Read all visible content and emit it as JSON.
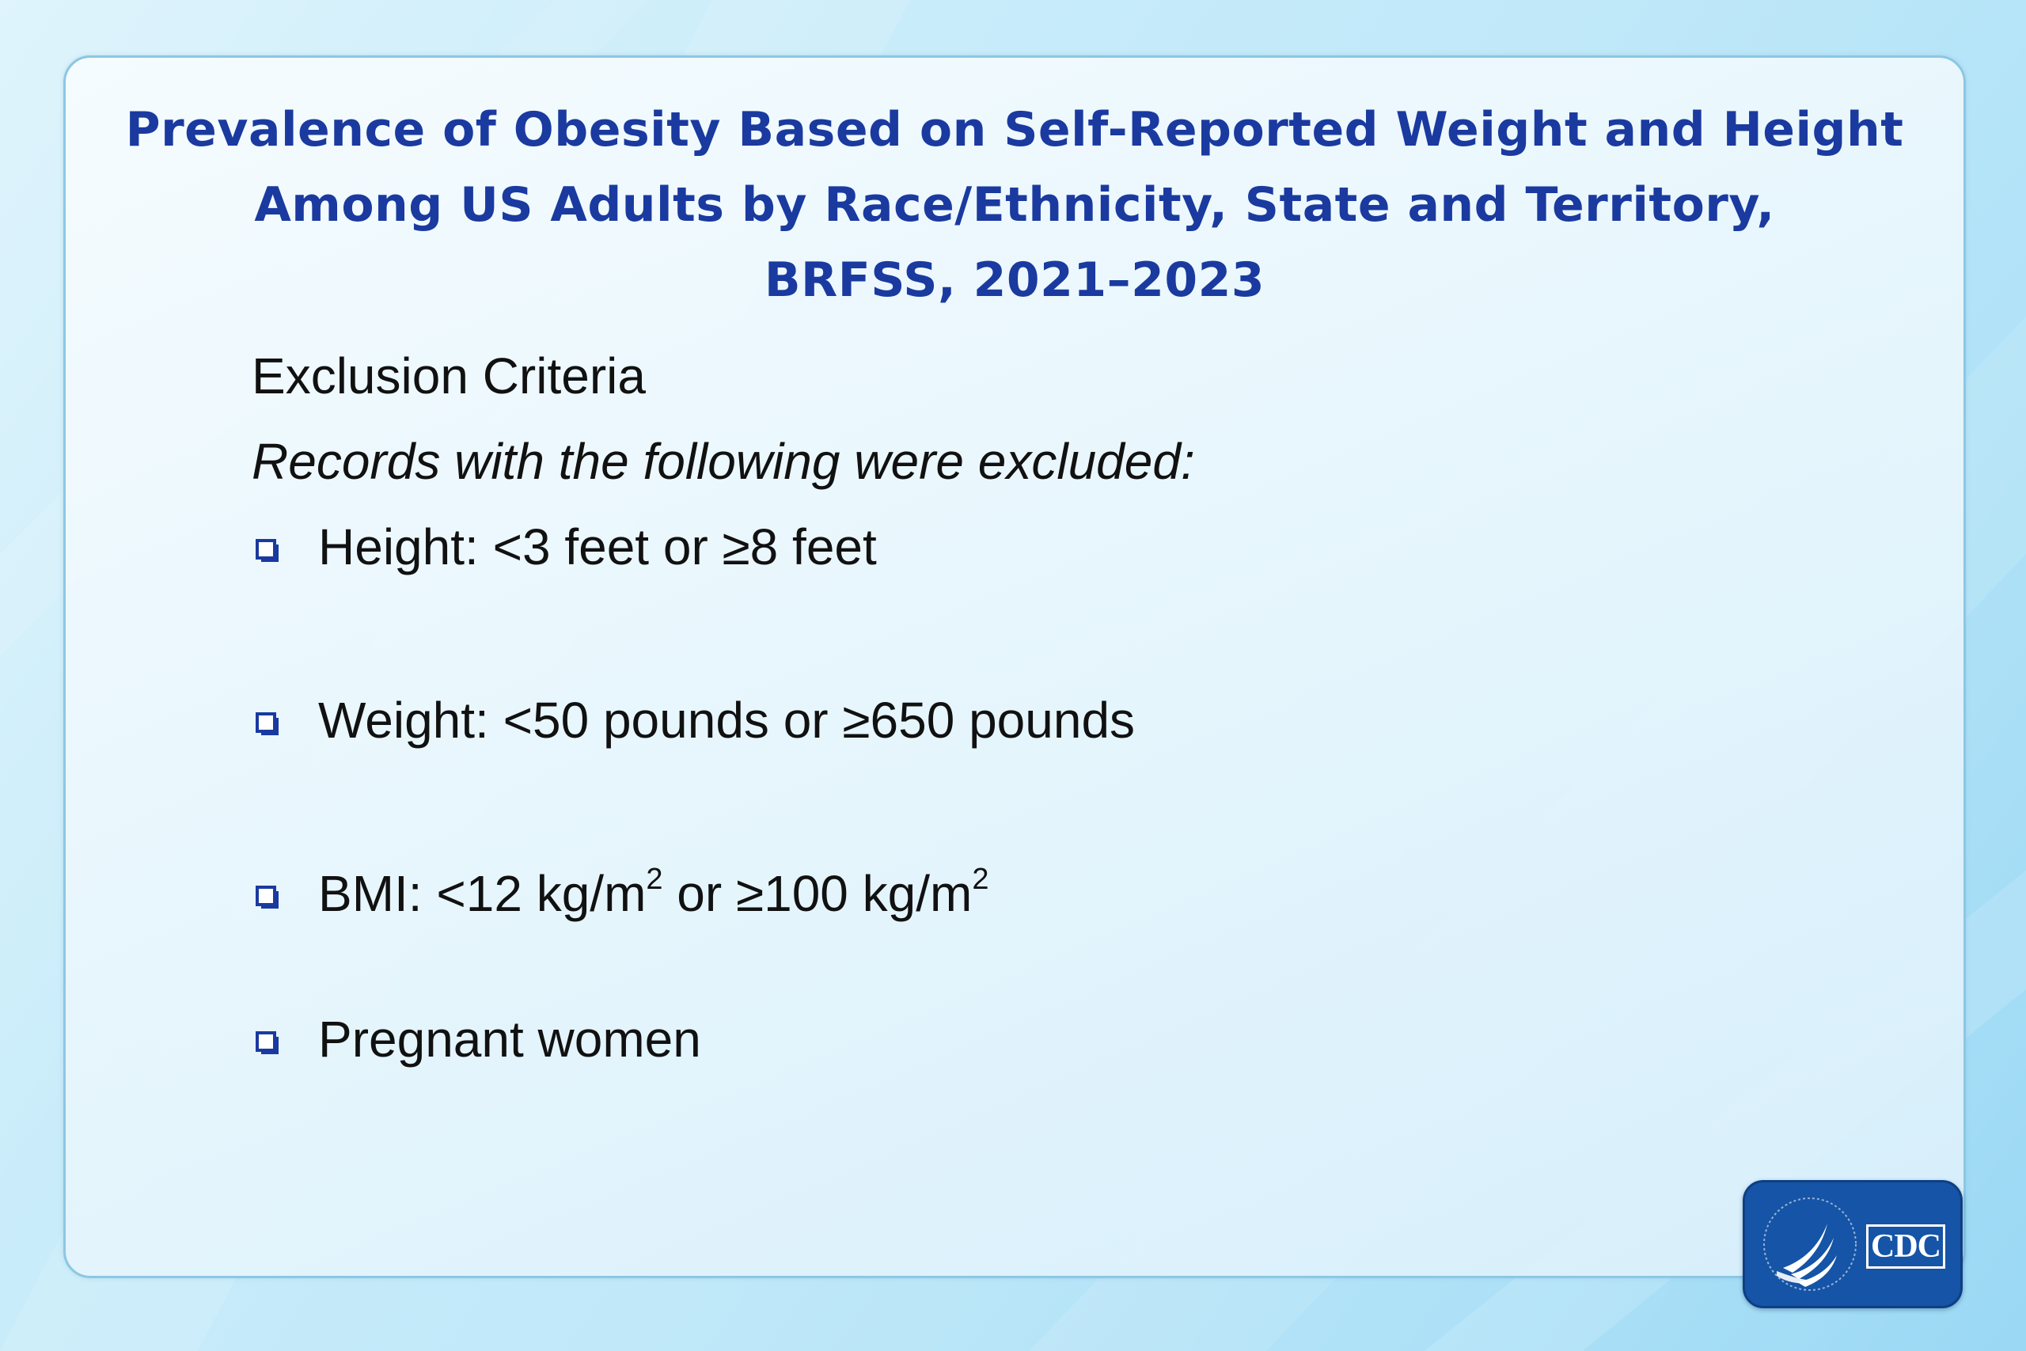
{
  "slide": {
    "title_lines": [
      "Prevalence of Obesity Based on Self-Reported Weight and Height",
      "Among US Adults by Race/Ethnicity, State and Territory,",
      "BRFSS, 2021–2023"
    ],
    "heading": "Exclusion Criteria",
    "subheading": "Records with the following were excluded:",
    "criteria": {
      "height": "Height:  <3 feet or ≥8 feet",
      "weight": "Weight:  <50 pounds or ≥650 pounds",
      "bmi": {
        "label": "BMI: <12 kg/m",
        "exponent": "2",
        "middle": " or ≥100 kg/m"
      },
      "pregnant": "Pregnant women"
    }
  },
  "logo": {
    "text": "CDC",
    "icon": "hhs-eagle-icon"
  },
  "colors": {
    "title": "#1a3aa0",
    "bullet": "#1a3aa0",
    "logo_background": "#1554a6",
    "frame_border": "#8cc7e4"
  }
}
